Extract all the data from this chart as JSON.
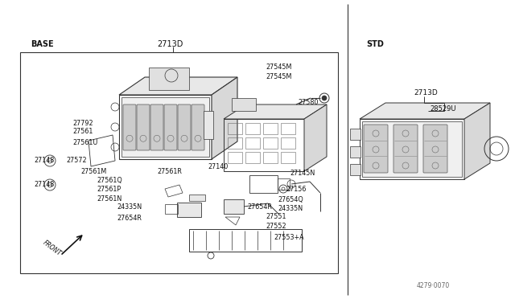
{
  "bg_color": "#ffffff",
  "text_color": "#111111",
  "line_color": "#333333",
  "fig_width": 6.4,
  "fig_height": 3.72,
  "dpi": 100,
  "base_label": "BASE",
  "std_label": "STD",
  "diagram_code": "4279·0070"
}
